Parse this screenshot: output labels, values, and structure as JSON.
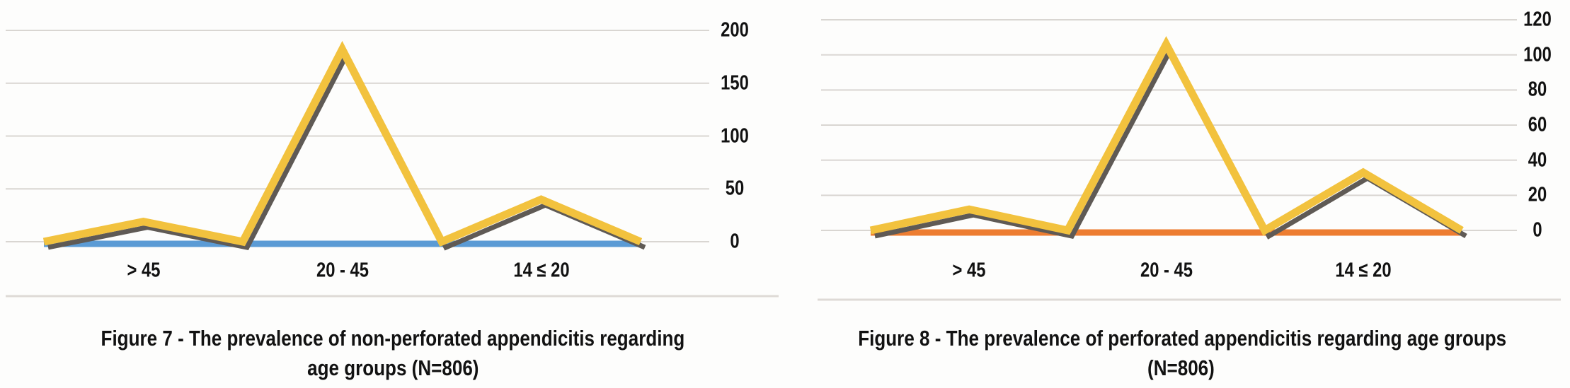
{
  "colors": {
    "gridline": "#D9D6D2",
    "separator": "#DEDAD6",
    "text": "#121212",
    "yellow_line": "#F2C23E",
    "line_shadow": "#5F5A55",
    "blue_baseline": "#5B9BD5",
    "orange_baseline": "#ED7D31"
  },
  "chart_data": [
    {
      "type": "line",
      "figure_label": "Figure 7",
      "title_line1": "Figure 7 - The prevalence of non-perforated appendicitis regarding",
      "title_line2": "age groups (N=806)",
      "categories": [
        "> 45",
        "20 - 45",
        "14 ≤ 20"
      ],
      "category_peak_values": [
        19,
        182,
        40
      ],
      "series": [
        {
          "name": "yellow-line",
          "color": "#F2C23E",
          "shadow_color": "#5F5A55",
          "values": [
            0,
            19,
            0,
            182,
            0,
            40,
            0
          ],
          "x_note": "7 evenly spaced points: edge, > 45, midpoint, 20 - 45, midpoint, 14 ≤ 20, edge"
        },
        {
          "name": "blue-baseline-line",
          "color": "#5B9BD5",
          "values": [
            0,
            0,
            0,
            0,
            0,
            0,
            0
          ]
        }
      ],
      "yticks": [
        0,
        50,
        100,
        150,
        200
      ],
      "ylim": [
        0,
        200
      ],
      "y_axis_side": "right",
      "grid": true,
      "legend": false
    },
    {
      "type": "line",
      "figure_label": "Figure 8",
      "title_line1": "Figure 8 - The prevalence of perforated appendicitis regarding age groups",
      "title_line2": "(N=806)",
      "categories": [
        "> 45",
        "20 - 45",
        "14 ≤ 20"
      ],
      "category_peak_values": [
        12,
        106,
        33
      ],
      "series": [
        {
          "name": "yellow-line",
          "color": "#F2C23E",
          "shadow_color": "#5F5A55",
          "values": [
            0,
            12,
            0,
            106,
            0,
            33,
            0
          ],
          "x_note": "7 evenly spaced points: edge, > 45, midpoint, 20 - 45, midpoint, 14 ≤ 20, edge"
        },
        {
          "name": "orange-baseline-line",
          "color": "#ED7D31",
          "values": [
            0,
            0,
            0,
            0,
            0,
            0,
            0
          ]
        }
      ],
      "yticks": [
        0,
        20,
        40,
        60,
        80,
        100,
        120
      ],
      "ylim": [
        0,
        120
      ],
      "y_axis_side": "right",
      "grid": true,
      "legend": false
    }
  ]
}
